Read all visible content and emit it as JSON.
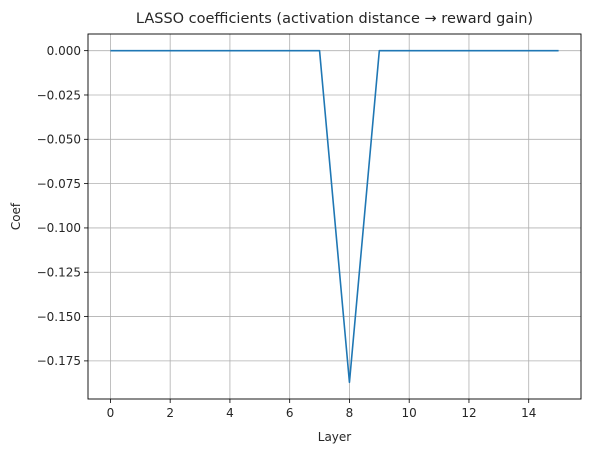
{
  "chart_data": {
    "type": "line",
    "title": "LASSO coefficients (activation distance → reward gain)",
    "xlabel": "Layer",
    "ylabel": "Coef",
    "xlim": [
      -0.75,
      15.75
    ],
    "ylim": [
      -0.1965,
      0.0094
    ],
    "xticks": [
      0,
      2,
      4,
      6,
      8,
      10,
      12,
      14
    ],
    "xtick_labels": [
      "0",
      "2",
      "4",
      "6",
      "8",
      "10",
      "12",
      "14"
    ],
    "yticks": [
      0.0,
      -0.025,
      -0.05,
      -0.075,
      -0.1,
      -0.125,
      -0.15,
      -0.175
    ],
    "ytick_labels": [
      "0.000",
      "−0.025",
      "−0.050",
      "−0.075",
      "−0.100",
      "−0.125",
      "−0.150",
      "−0.175"
    ],
    "grid": true,
    "series": [
      {
        "color": "#1f77b4",
        "x": [
          0,
          1,
          2,
          3,
          4,
          5,
          6,
          7,
          8,
          9,
          10,
          11,
          12,
          13,
          14,
          15
        ],
        "values": [
          0,
          0,
          0,
          0,
          0,
          0,
          0,
          0,
          -0.1871,
          0,
          0,
          0,
          0,
          0,
          0,
          0
        ]
      }
    ]
  }
}
